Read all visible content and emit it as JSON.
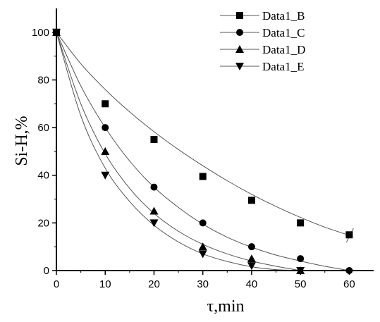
{
  "chart_data": {
    "type": "scatter",
    "xlabel": "τ,min",
    "ylabel": "Si-H,%",
    "xlim": [
      0,
      65
    ],
    "ylim": [
      0,
      110
    ],
    "xticks": [
      0,
      10,
      20,
      30,
      40,
      50,
      60
    ],
    "yticks": [
      0,
      20,
      40,
      60,
      80,
      100
    ],
    "legend_position": "top-right",
    "grid": false,
    "series": [
      {
        "name": "Data1_B",
        "marker": "square",
        "x": [
          0,
          10,
          20,
          30,
          40,
          50,
          60
        ],
        "y": [
          100,
          70,
          55,
          39.5,
          29.5,
          20,
          15
        ],
        "fit": [
          [
            0,
            100
          ],
          [
            5,
            86.8
          ],
          [
            10,
            76
          ],
          [
            15,
            66.6
          ],
          [
            20,
            58.3
          ],
          [
            25,
            50.8
          ],
          [
            30,
            44
          ],
          [
            35,
            37.7
          ],
          [
            40,
            32
          ],
          [
            45,
            26.9
          ],
          [
            50,
            22.3
          ],
          [
            55,
            18.2
          ],
          [
            60,
            14.8
          ]
        ]
      },
      {
        "name": "Data1_C",
        "marker": "circle",
        "x": [
          0,
          10,
          20,
          30,
          40,
          50,
          60
        ],
        "y": [
          100,
          60,
          35,
          20,
          10,
          5,
          0
        ],
        "fit": [
          [
            0,
            100
          ],
          [
            5,
            77.5
          ],
          [
            10,
            60
          ],
          [
            15,
            46
          ],
          [
            20,
            35
          ],
          [
            25,
            26.5
          ],
          [
            30,
            19.5
          ],
          [
            35,
            14
          ],
          [
            40,
            9.8
          ],
          [
            45,
            6.5
          ],
          [
            50,
            4
          ],
          [
            55,
            1.8
          ],
          [
            60,
            0
          ]
        ]
      },
      {
        "name": "Data1_D",
        "marker": "triangle-up",
        "x": [
          0,
          10,
          20,
          30,
          40,
          50
        ],
        "y": [
          100,
          50,
          25,
          10,
          5,
          0
        ],
        "fit": [
          [
            0,
            100
          ],
          [
            5,
            70
          ],
          [
            10,
            49
          ],
          [
            15,
            34.5
          ],
          [
            20,
            24
          ],
          [
            25,
            16.5
          ],
          [
            30,
            11
          ],
          [
            35,
            7
          ],
          [
            40,
            4
          ],
          [
            45,
            1.8
          ],
          [
            50,
            0
          ]
        ]
      },
      {
        "name": "Data1_E",
        "marker": "triangle-down",
        "x": [
          0,
          10,
          20,
          30,
          40,
          50
        ],
        "y": [
          100,
          40,
          20,
          7,
          2,
          0
        ],
        "fit": [
          [
            0,
            100
          ],
          [
            5,
            65
          ],
          [
            10,
            43
          ],
          [
            15,
            29
          ],
          [
            20,
            19
          ],
          [
            25,
            12
          ],
          [
            30,
            7
          ],
          [
            35,
            3.8
          ],
          [
            40,
            1.6
          ],
          [
            45,
            0.4
          ],
          [
            50,
            0
          ]
        ]
      }
    ]
  }
}
